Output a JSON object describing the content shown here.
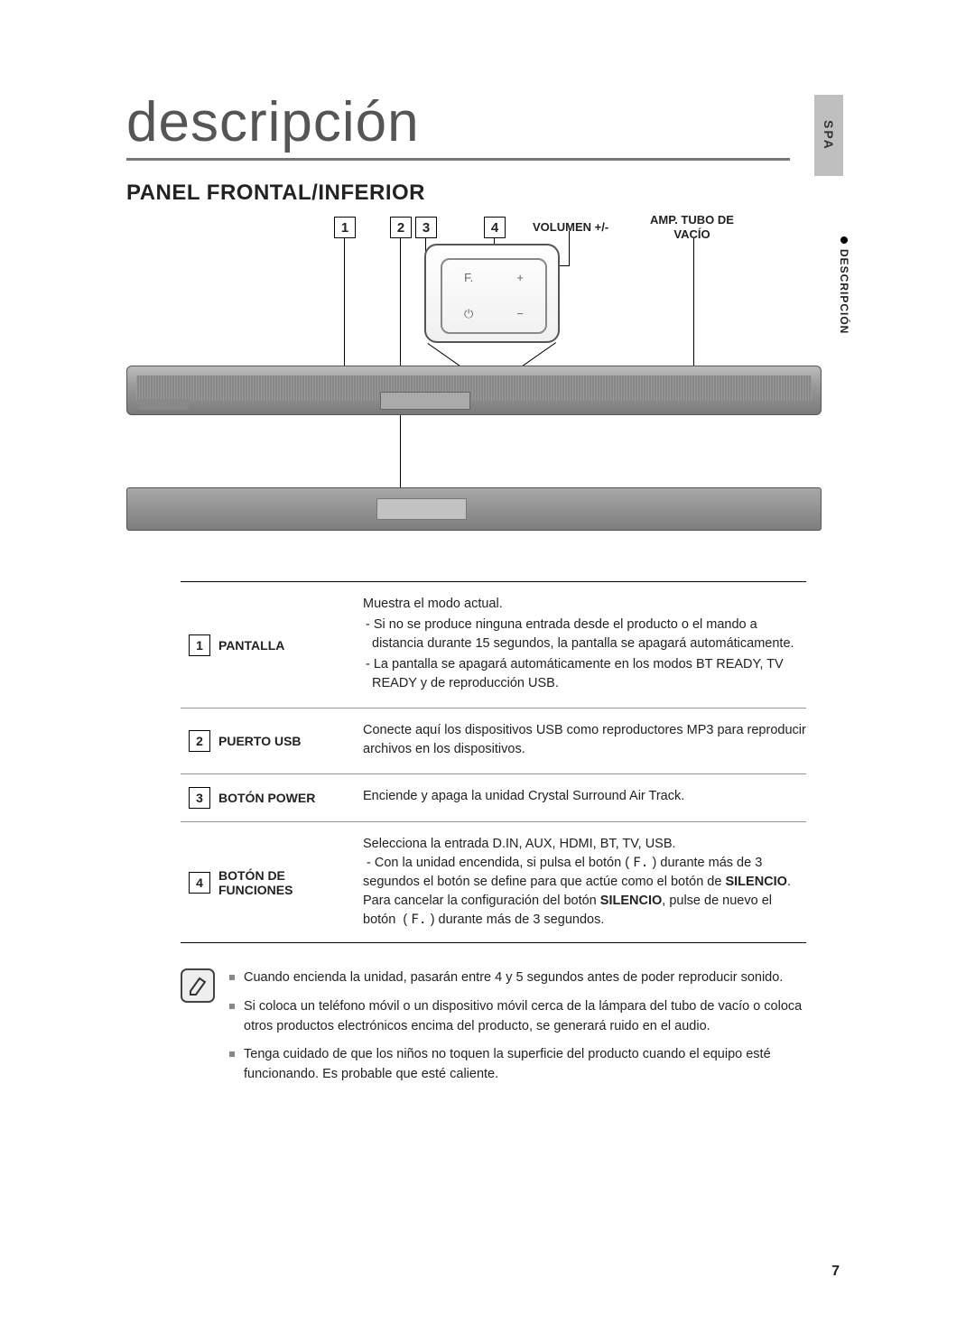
{
  "lang_tab": "SPA",
  "section_tab": "DESCRIPCIÓN",
  "main_title": "descripción",
  "section_heading": "PANEL FRONTAL/INFERIOR",
  "diagram": {
    "callouts": [
      "1",
      "2",
      "3",
      "4"
    ],
    "label_volume": "VOLUMEN +/-",
    "label_amp_line1": "AMP. TUBO DE",
    "label_amp_line2": "VACÍO",
    "zoom_f": "F.",
    "zoom_plus": "+",
    "zoom_minus": "−",
    "zoom_power": "⏻"
  },
  "table": [
    {
      "num": "1",
      "name": "PANTALLA",
      "lines": [
        "Muestra el modo actual.",
        "- Si no se produce ninguna entrada desde el producto o el mando a distancia durante 15 segundos, la pantalla se apagará automáticamente.",
        "- La pantalla se apagará automáticamente en los modos BT READY, TV READY y de reproducción USB."
      ]
    },
    {
      "num": "2",
      "name": "PUERTO USB",
      "lines": [
        "Conecte aquí los dispositivos USB como reproductores MP3 para reproducir archivos en los dispositivos."
      ]
    },
    {
      "num": "3",
      "name": "BOTÓN POWER",
      "lines": [
        "Enciende y apaga la unidad Crystal Surround Air Track."
      ]
    },
    {
      "num": "4",
      "name": "BOTÓN DE FUNCIONES",
      "desc_html": "Selecciona la entrada D.IN, AUX, HDMI, BT, TV, USB.<br>&nbsp;- Con la unidad encendida, si pulsa el botón ( <span style='font-family:monospace'>F.</span> ) durante más de 3 segundos el botón se define para que actúe como el botón de <span class='strong'>SILENCIO</span>. Para cancelar la configuración del botón <span class='strong'>SILENCIO</span>, pulse de nuevo el botón &nbsp;( <span style='font-family:monospace'>F.</span> ) durante más de 3 segundos."
    }
  ],
  "notes": [
    "Cuando encienda la unidad, pasarán entre 4 y 5 segundos antes de poder reproducir sonido.",
    "Si coloca un teléfono móvil o un dispositivo móvil cerca de la lámpara del tubo de vacío o coloca otros productos electrónicos encima del producto, se generará ruido en el audio.",
    "Tenga cuidado de que los niños no toquen la superficie del producto cuando el equipo esté funcionando. Es probable que esté caliente."
  ],
  "page_number": "7",
  "colors": {
    "title_underline": "#777777",
    "tab_bg": "#bfbfbf",
    "bar_gradient_top": "#bdbdbd",
    "bar_gradient_bottom": "#7a7a7a"
  }
}
